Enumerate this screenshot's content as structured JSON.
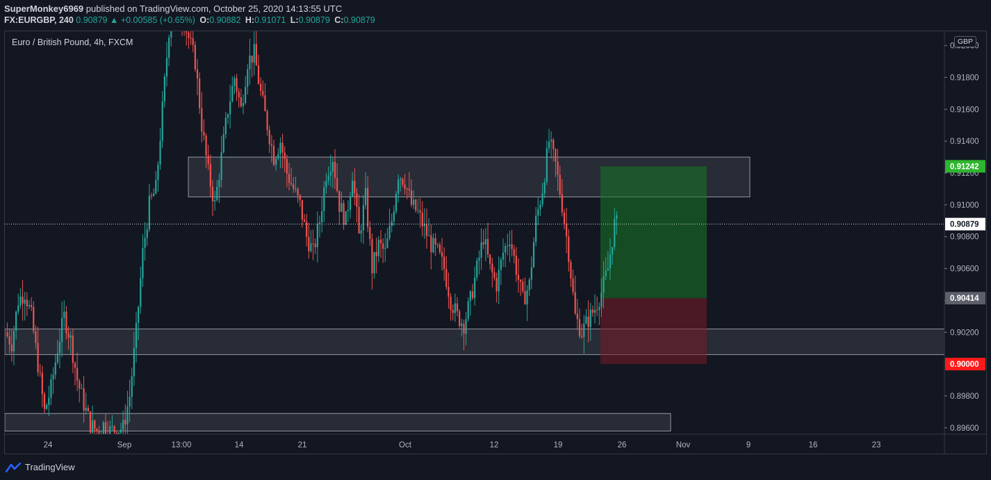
{
  "header": {
    "author": "SuperMonkey6969",
    "published": "published on TradingView.com, October 25, 2020 14:13:55 UTC",
    "symbol_line": "FX:EURGBP, 240",
    "last_price": "0.90879",
    "change_arrow": "▲",
    "change": "+0.00585 (+0.65%)",
    "open_label": "O:",
    "open": "0.90882",
    "high_label": "H:",
    "high": "0.91071",
    "low_label": "L:",
    "low": "0.90879",
    "close_label": "C:",
    "close": "0.90879"
  },
  "chart_title": "Euro / British Pound, 4h, FXCM",
  "currency_badge": "GBP",
  "footer": {
    "brand": "TradingView"
  },
  "colors": {
    "background": "#131722",
    "up": "#26a69a",
    "down": "#ef5350",
    "zone": "#2a2e39",
    "profit_zone": "#1b5e20",
    "loss_zone": "#5d1f26",
    "target_label": "#2fb52f",
    "stop_label": "#ff1a1a",
    "entry_label": "#5d606b"
  },
  "chart_data": {
    "type": "candlestick",
    "title": "Euro / British Pound, 4h, FXCM",
    "y_unit": "GBP",
    "ylim": [
      0.8956,
      0.9209
    ],
    "y_ticks": [
      "0.92000",
      "0.91800",
      "0.91600",
      "0.91400",
      "0.91200",
      "0.91000",
      "0.90800",
      "0.90600",
      "0.90400",
      "0.90200",
      "0.89800",
      "0.89600"
    ],
    "x_ticks": [
      "24",
      "Sep",
      "13:00",
      "14",
      "21",
      "Oct",
      "12",
      "19",
      "26",
      "Nov",
      "9",
      "16",
      "23"
    ],
    "current_price": "0.90879",
    "price_labels": [
      {
        "text": "0.91242",
        "role": "target",
        "value": 0.91242
      },
      {
        "text": "0.90879",
        "role": "current",
        "value": 0.90879
      },
      {
        "text": "0.90414",
        "role": "entry",
        "value": 0.90414
      },
      {
        "text": "0.90000",
        "role": "stop",
        "value": 0.9
      }
    ],
    "zones": [
      {
        "name": "resistance",
        "low": 0.9105,
        "high": 0.913
      },
      {
        "name": "support",
        "low": 0.9006,
        "high": 0.9022
      },
      {
        "name": "lower-support",
        "low": 0.8958,
        "high": 0.8969
      }
    ],
    "position": {
      "entry": 0.90414,
      "target": 0.91242,
      "stop": 0.9
    },
    "price_path": [
      [
        0,
        0.902
      ],
      [
        3,
        0.9013
      ],
      [
        6,
        0.904
      ],
      [
        9,
        0.9045
      ],
      [
        12,
        0.903
      ],
      [
        15,
        0.9
      ],
      [
        18,
        0.897
      ],
      [
        21,
        0.8985
      ],
      [
        24,
        0.901
      ],
      [
        27,
        0.903
      ],
      [
        30,
        0.9015
      ],
      [
        33,
        0.899
      ],
      [
        36,
        0.8975
      ],
      [
        39,
        0.8962
      ],
      [
        42,
        0.8958
      ],
      [
        45,
        0.8962
      ],
      [
        48,
        0.8958
      ],
      [
        54,
        0.896
      ],
      [
        57,
        0.898
      ],
      [
        60,
        0.902
      ],
      [
        63,
        0.907
      ],
      [
        66,
        0.91
      ],
      [
        69,
        0.911
      ],
      [
        72,
        0.916
      ],
      [
        75,
        0.921
      ],
      [
        78,
        0.923
      ],
      [
        81,
        0.922
      ],
      [
        84,
        0.9205
      ],
      [
        87,
        0.919
      ],
      [
        90,
        0.915
      ],
      [
        93,
        0.912
      ],
      [
        96,
        0.91
      ],
      [
        99,
        0.913
      ],
      [
        102,
        0.916
      ],
      [
        105,
        0.918
      ],
      [
        108,
        0.916
      ],
      [
        111,
        0.919
      ],
      [
        114,
        0.9195
      ],
      [
        117,
        0.917
      ],
      [
        120,
        0.915
      ],
      [
        123,
        0.913
      ],
      [
        126,
        0.914
      ],
      [
        129,
        0.912
      ],
      [
        132,
        0.911
      ],
      [
        135,
        0.91
      ],
      [
        138,
        0.908
      ],
      [
        141,
        0.907
      ],
      [
        144,
        0.909
      ],
      [
        147,
        0.912
      ],
      [
        150,
        0.913
      ],
      [
        153,
        0.91
      ],
      [
        156,
        0.909
      ],
      [
        159,
        0.912
      ],
      [
        162,
        0.908
      ],
      [
        165,
        0.9105
      ],
      [
        168,
        0.906
      ],
      [
        171,
        0.9075
      ],
      [
        174,
        0.907
      ],
      [
        177,
        0.909
      ],
      [
        180,
        0.912
      ],
      [
        183,
        0.9115
      ],
      [
        186,
        0.91
      ],
      [
        189,
        0.9095
      ],
      [
        192,
        0.9085
      ],
      [
        195,
        0.9075
      ],
      [
        198,
        0.907
      ],
      [
        201,
        0.906
      ],
      [
        204,
        0.904
      ],
      [
        207,
        0.903
      ],
      [
        210,
        0.9025
      ],
      [
        213,
        0.904
      ],
      [
        216,
        0.906
      ],
      [
        219,
        0.908
      ],
      [
        222,
        0.906
      ],
      [
        225,
        0.905
      ],
      [
        228,
        0.907
      ],
      [
        231,
        0.908
      ],
      [
        234,
        0.906
      ],
      [
        237,
        0.904
      ],
      [
        240,
        0.905
      ],
      [
        243,
        0.909
      ],
      [
        246,
        0.911
      ],
      [
        249,
        0.914
      ],
      [
        252,
        0.9125
      ],
      [
        255,
        0.91
      ],
      [
        258,
        0.907
      ],
      [
        261,
        0.903
      ],
      [
        264,
        0.902
      ],
      [
        267,
        0.9028
      ],
      [
        270,
        0.9035
      ],
      [
        273,
        0.9045
      ],
      [
        276,
        0.906
      ],
      [
        279,
        0.9088
      ]
    ]
  }
}
